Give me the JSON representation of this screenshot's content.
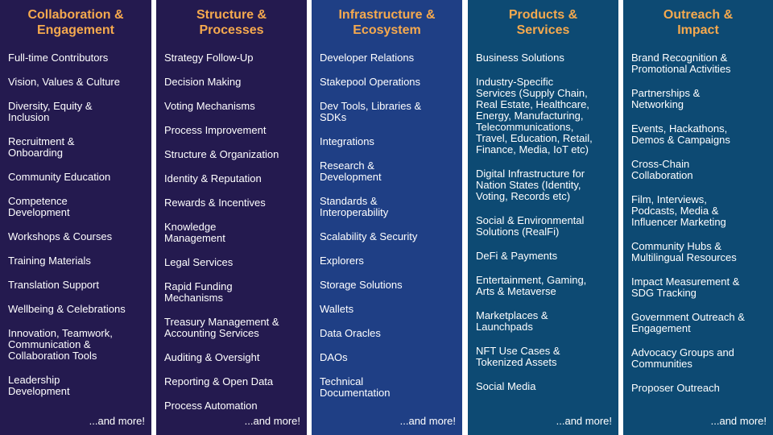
{
  "columns": [
    {
      "title": "Collaboration &\nEngagement",
      "items": [
        "Full-time Contributors",
        "Vision, Values & Culture",
        "Diversity, Equity &\nInclusion",
        "Recruitment &\nOnboarding",
        "Community Education",
        "Competence\nDevelopment",
        "Workshops & Courses",
        "Training Materials",
        "Translation Support",
        "Wellbeing & Celebrations",
        "Innovation, Teamwork,\nCommunication &\nCollaboration Tools",
        "Leadership\nDevelopment"
      ],
      "more": "...and more!"
    },
    {
      "title": "Structure &\nProcesses",
      "items": [
        "Strategy Follow-Up",
        "Decision Making",
        "Voting Mechanisms",
        "Process Improvement",
        "Structure & Organization",
        "Identity & Reputation",
        "Rewards & Incentives",
        "Knowledge\nManagement",
        "Legal Services",
        "Rapid Funding\nMechanisms",
        "Treasury Management &\nAccounting Services",
        "Auditing & Oversight",
        "Reporting & Open Data",
        "Process Automation"
      ],
      "more": "...and more!"
    },
    {
      "title": "Infrastructure &\nEcosystem",
      "items": [
        "Developer Relations",
        "Stakepool Operations",
        "Dev Tools, Libraries &\nSDKs",
        "Integrations",
        "Research &\nDevelopment",
        "Standards &\nInteroperability",
        "Scalability & Security",
        "Explorers",
        "Storage Solutions",
        "Wallets",
        "Data Oracles",
        "DAOs",
        "Technical\nDocumentation"
      ],
      "more": "...and more!"
    },
    {
      "title": "Products &\nServices",
      "items": [
        "Business Solutions",
        "Industry-Specific\nServices (Supply Chain,\nReal Estate, Healthcare,\nEnergy, Manufacturing,\nTelecommunications,\nTravel, Education, Retail,\nFinance, Media, IoT etc)",
        "Digital Infrastructure for\nNation States (Identity,\nVoting, Records etc)",
        "Social & Environmental\nSolutions (RealFi)",
        "DeFi & Payments",
        "Entertainment, Gaming,\nArts & Metaverse",
        "Marketplaces &\nLaunchpads",
        "NFT Use Cases &\nTokenized Assets",
        "Social Media"
      ],
      "more": "...and more!"
    },
    {
      "title": "Outreach &\nImpact",
      "items": [
        "Brand Recognition &\nPromotional Activities",
        "Partnerships &\nNetworking",
        "Events, Hackathons,\nDemos & Campaigns",
        "Cross-Chain\nCollaboration",
        "Film, Interviews,\nPodcasts, Media &\nInfluencer Marketing",
        "Community Hubs &\nMultilingual Resources",
        "Impact Measurement &\nSDG Tracking",
        "Government Outreach &\nEngagement",
        "Advocacy Groups and\nCommunities",
        "Proposer Outreach"
      ],
      "more": "...and more!"
    }
  ],
  "colors": {
    "title_accent": "#f5a94e",
    "column_dark_purple": "#241a4f",
    "column_blue": "#1f3f85",
    "column_teal": "#0d4a73"
  }
}
